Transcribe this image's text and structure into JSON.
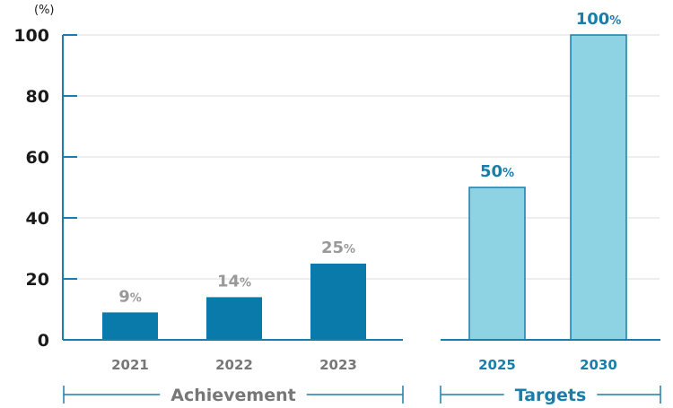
{
  "chart_data": {
    "type": "bar",
    "y_unit": "(%)",
    "ylim": [
      0,
      100
    ],
    "yticks": [
      "0",
      "20",
      "40",
      "60",
      "80",
      "100"
    ],
    "grid": true,
    "groups": [
      {
        "label": "Achievement",
        "color": "#0a7aab",
        "label_color": "#999999",
        "text_color": "#777777",
        "bars": [
          {
            "category": "2021",
            "value": 9,
            "label": "9",
            "unit": "%"
          },
          {
            "category": "2022",
            "value": 14,
            "label": "14",
            "unit": "%"
          },
          {
            "category": "2023",
            "value": 25,
            "label": "25",
            "unit": "%"
          }
        ]
      },
      {
        "label": "Targets",
        "color": "#8ed3e3",
        "stroke": "#1a7eaa",
        "label_color": "#1a7eaa",
        "text_color": "#1a7eaa",
        "bars": [
          {
            "category": "2025",
            "value": 50,
            "label": "50",
            "unit": "%"
          },
          {
            "category": "2030",
            "value": 100,
            "label": "100",
            "unit": "%"
          }
        ]
      }
    ],
    "axis_color": "#1a7eaa",
    "grid_color": "#dddddd"
  }
}
